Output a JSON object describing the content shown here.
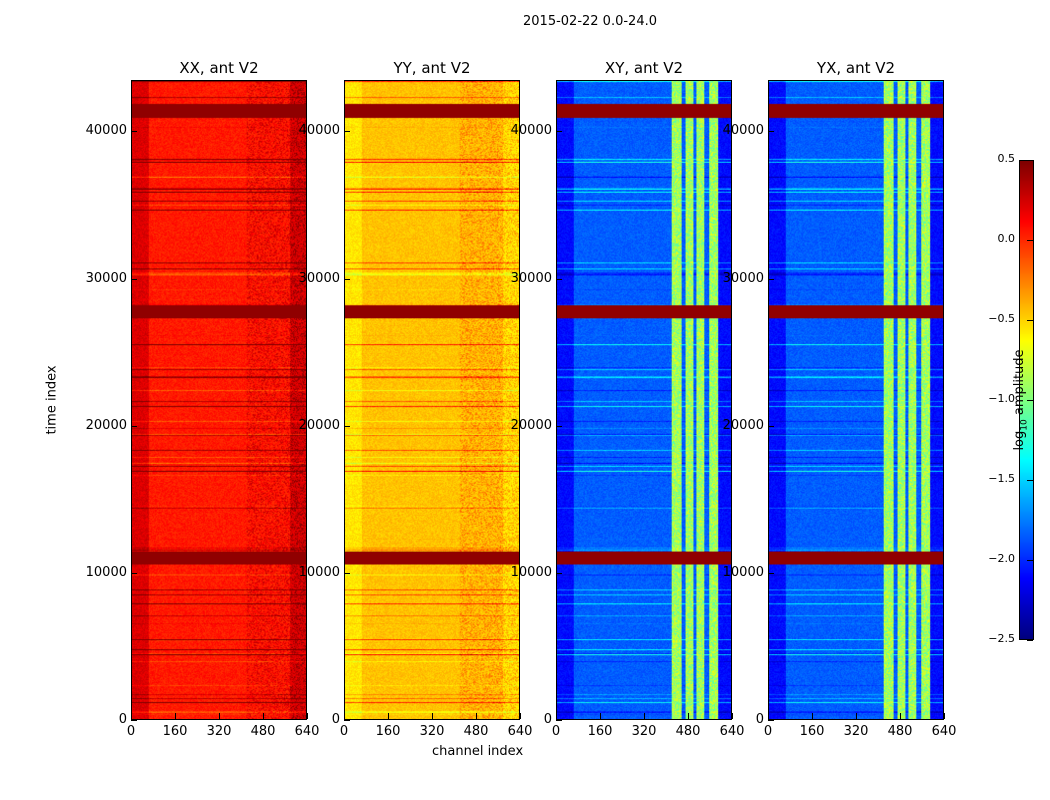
{
  "chart_data": {
    "type": "heatmap",
    "title": "2015-02-22 0.0-24.0",
    "xlabel": "channel index",
    "ylabel": "time index",
    "xlim": [
      0,
      640
    ],
    "ylim": [
      0,
      43500
    ],
    "xticks": [
      "0",
      "160",
      "320",
      "480",
      "640"
    ],
    "yticks": [
      "0",
      "10000",
      "20000",
      "30000",
      "40000"
    ],
    "xtick_values": [
      0,
      160,
      320,
      480,
      640
    ],
    "ytick_values": [
      0,
      10000,
      20000,
      30000,
      40000
    ],
    "colormap": "jet",
    "colorbar": {
      "label_prefix": "log",
      "label_sub": "10",
      "label_suffix": " amplitude",
      "range": [
        -2.5,
        0.5
      ],
      "ticks": [
        "0.5",
        "0.0",
        "−0.5",
        "−1.0",
        "−1.5",
        "−2.0",
        "−2.5"
      ],
      "tick_values": [
        0.5,
        0.0,
        -0.5,
        -1.0,
        -1.5,
        -2.0,
        -2.5
      ]
    },
    "panels": [
      {
        "title": "XX, ant V2",
        "base_log_amp": 0.05,
        "edge_log_amp": 0.3
      },
      {
        "title": "YY, ant V2",
        "base_log_amp": -0.45,
        "edge_log_amp": -0.6
      },
      {
        "title": "XY, ant V2",
        "base_log_amp": -1.85,
        "edge_log_amp": -2.2
      },
      {
        "title": "YX, ant V2",
        "base_log_amp": -1.85,
        "edge_log_amp": -2.2
      }
    ],
    "high_rows_time_index": [
      11000,
      27800,
      41500
    ],
    "high_channel_ranges_cross": [
      [
        420,
        455
      ],
      [
        470,
        500
      ],
      [
        510,
        540
      ],
      [
        560,
        590
      ]
    ]
  }
}
